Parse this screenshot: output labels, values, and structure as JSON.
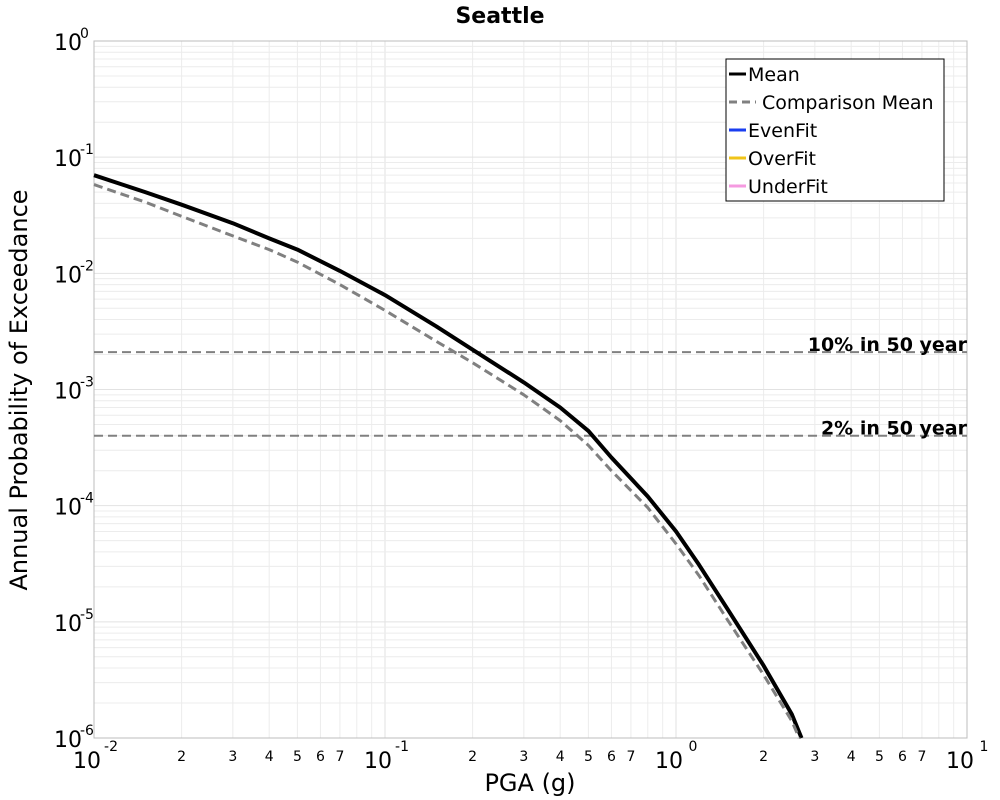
{
  "chart_data": {
    "type": "line",
    "title": "Seattle",
    "xlabel": "PGA (g)",
    "ylabel": "Annual Probability of Exceedance",
    "xscale": "log",
    "yscale": "log",
    "xlim": [
      0.01,
      10
    ],
    "ylim": [
      1e-06,
      1
    ],
    "grid": true,
    "legend_position": "top-right",
    "x_major_ticks": [
      {
        "value": 0.01,
        "base": "10",
        "exp": "-2"
      },
      {
        "value": 0.1,
        "base": "10",
        "exp": "-1"
      },
      {
        "value": 1,
        "base": "10",
        "exp": "0"
      },
      {
        "value": 10,
        "base": "10",
        "exp": "1"
      }
    ],
    "x_minor_ticks": [
      {
        "value": 0.02,
        "label": "2"
      },
      {
        "value": 0.03,
        "label": "3"
      },
      {
        "value": 0.04,
        "label": "4"
      },
      {
        "value": 0.05,
        "label": "5"
      },
      {
        "value": 0.06,
        "label": "6"
      },
      {
        "value": 0.07,
        "label": "7"
      },
      {
        "value": 0.2,
        "label": "2"
      },
      {
        "value": 0.3,
        "label": "3"
      },
      {
        "value": 0.4,
        "label": "4"
      },
      {
        "value": 0.5,
        "label": "5"
      },
      {
        "value": 0.6,
        "label": "6"
      },
      {
        "value": 0.7,
        "label": "7"
      },
      {
        "value": 2,
        "label": "2"
      },
      {
        "value": 3,
        "label": "3"
      },
      {
        "value": 4,
        "label": "4"
      },
      {
        "value": 5,
        "label": "5"
      },
      {
        "value": 6,
        "label": "6"
      },
      {
        "value": 7,
        "label": "7"
      }
    ],
    "y_major_ticks": [
      {
        "value": 1,
        "base": "10",
        "exp": "0"
      },
      {
        "value": 0.1,
        "base": "10",
        "exp": "-1"
      },
      {
        "value": 0.01,
        "base": "10",
        "exp": "-2"
      },
      {
        "value": 0.001,
        "base": "10",
        "exp": "-3"
      },
      {
        "value": 0.0001,
        "base": "10",
        "exp": "-4"
      },
      {
        "value": 1e-05,
        "base": "10",
        "exp": "-5"
      },
      {
        "value": 1e-06,
        "base": "10",
        "exp": "-6"
      }
    ],
    "reference_lines": [
      {
        "label": "10% in 50 year",
        "y": 0.0021,
        "color": "#808080"
      },
      {
        "label": "2% in 50 year",
        "y": 0.0004,
        "color": "#808080"
      }
    ],
    "series": [
      {
        "name": "Mean",
        "color": "#000000",
        "style": "solid",
        "x": [
          0.01,
          0.015,
          0.02,
          0.03,
          0.04,
          0.05,
          0.07,
          0.1,
          0.15,
          0.2,
          0.3,
          0.4,
          0.5,
          0.6,
          0.8,
          1.0,
          1.2,
          1.5,
          2.0,
          2.5,
          2.7
        ],
        "y": [
          0.07,
          0.05,
          0.039,
          0.027,
          0.02,
          0.016,
          0.0105,
          0.0065,
          0.0035,
          0.0022,
          0.00115,
          0.0007,
          0.00044,
          0.00026,
          0.00012,
          6e-05,
          3.1e-05,
          1.3e-05,
          4.2e-06,
          1.6e-06,
          1e-06
        ]
      },
      {
        "name": "Comparison Mean",
        "color": "#808080",
        "style": "dashed",
        "x": [
          0.01,
          0.015,
          0.02,
          0.03,
          0.04,
          0.05,
          0.07,
          0.1,
          0.15,
          0.2,
          0.3,
          0.4,
          0.5,
          0.6,
          0.8,
          1.0,
          1.2,
          1.5,
          2.0,
          2.5,
          2.65
        ],
        "y": [
          0.058,
          0.041,
          0.031,
          0.021,
          0.016,
          0.0125,
          0.008,
          0.0048,
          0.0026,
          0.0017,
          0.0009,
          0.00054,
          0.00033,
          0.0002,
          9.6e-05,
          4.7e-05,
          2.5e-05,
          1.05e-05,
          3.5e-06,
          1.4e-06,
          1e-06
        ]
      },
      {
        "name": "EvenFit",
        "color": "#1a3ef0",
        "style": "solid",
        "x": [],
        "y": []
      },
      {
        "name": "OverFit",
        "color": "#f0c419",
        "style": "solid",
        "x": [],
        "y": []
      },
      {
        "name": "UnderFit",
        "color": "#f59ae0",
        "style": "solid",
        "x": [],
        "y": []
      }
    ]
  }
}
